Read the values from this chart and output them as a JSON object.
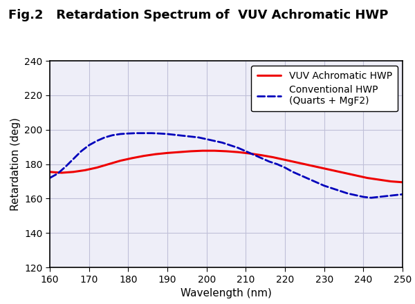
{
  "title": "Fig.2   Retardation Spectrum of  VUV Achromatic HWP",
  "xlabel": "Wavelength (nm)",
  "ylabel": "Retardation (deg)",
  "xlim": [
    160,
    250
  ],
  "ylim": [
    120,
    240
  ],
  "xticks": [
    160,
    170,
    180,
    190,
    200,
    210,
    220,
    230,
    240,
    250
  ],
  "yticks": [
    120,
    140,
    160,
    180,
    200,
    220,
    240
  ],
  "grid_color": "#c0c0d8",
  "background_color": "#eeeef8",
  "fig_background": "#ffffff",
  "red_line": {
    "x": [
      160,
      163,
      166,
      169,
      172,
      175,
      178,
      181,
      184,
      187,
      190,
      193,
      196,
      199,
      202,
      205,
      208,
      211,
      214,
      217,
      220,
      223,
      226,
      229,
      232,
      235,
      238,
      241,
      244,
      247,
      250
    ],
    "y": [
      175.5,
      175.0,
      175.5,
      176.5,
      178.0,
      180.0,
      182.0,
      183.5,
      184.8,
      185.8,
      186.5,
      187.0,
      187.5,
      187.8,
      187.8,
      187.5,
      187.0,
      186.2,
      185.2,
      184.0,
      182.5,
      181.0,
      179.5,
      178.0,
      176.5,
      175.0,
      173.5,
      172.0,
      171.0,
      170.0,
      169.5
    ],
    "color": "#ee0000",
    "linewidth": 2.2,
    "label": "VUV Achromatic HWP"
  },
  "blue_line": {
    "x": [
      160,
      162,
      164,
      166,
      168,
      170,
      172,
      174,
      176,
      178,
      180,
      182,
      184,
      186,
      188,
      190,
      192,
      194,
      196,
      198,
      200,
      202,
      204,
      206,
      208,
      210,
      212,
      214,
      216,
      218,
      220,
      222,
      224,
      226,
      228,
      230,
      232,
      234,
      236,
      238,
      240,
      242,
      244,
      246,
      248,
      250
    ],
    "y": [
      172.0,
      174.5,
      178.5,
      183.0,
      187.5,
      191.0,
      193.5,
      195.5,
      196.8,
      197.5,
      197.8,
      198.0,
      198.0,
      198.0,
      197.8,
      197.5,
      197.0,
      196.5,
      196.0,
      195.5,
      194.5,
      193.5,
      192.5,
      191.0,
      189.5,
      187.5,
      185.5,
      183.5,
      181.5,
      180.0,
      178.0,
      175.5,
      173.5,
      171.5,
      169.5,
      167.5,
      166.0,
      164.5,
      163.0,
      162.0,
      161.0,
      160.5,
      161.0,
      161.5,
      162.0,
      162.5
    ],
    "color": "#0000bb",
    "linewidth": 2.0,
    "linestyle": "--",
    "label": "Conventional HWP\n(Quarts + MgF2)"
  },
  "legend_loc": "upper right",
  "title_fontsize": 13,
  "axis_label_fontsize": 11,
  "tick_fontsize": 10,
  "legend_fontsize": 10
}
